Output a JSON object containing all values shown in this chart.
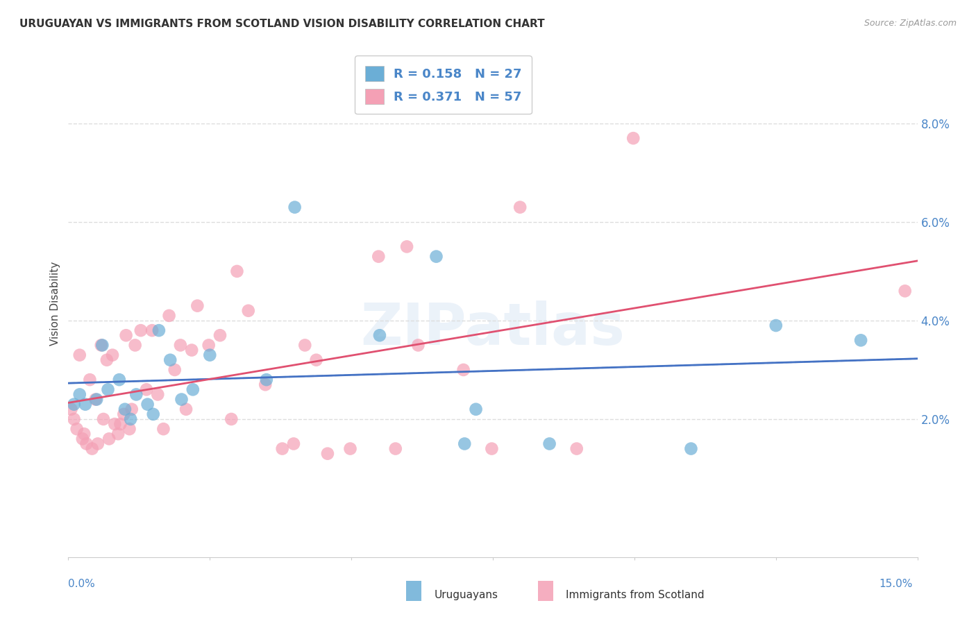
{
  "title": "URUGUAYAN VS IMMIGRANTS FROM SCOTLAND VISION DISABILITY CORRELATION CHART",
  "source": "Source: ZipAtlas.com",
  "ylabel": "Vision Disability",
  "xlim": [
    0.0,
    15.0
  ],
  "ylim": [
    -0.8,
    9.5
  ],
  "yticks": [
    2.0,
    4.0,
    6.0,
    8.0
  ],
  "ytick_labels": [
    "2.0%",
    "4.0%",
    "6.0%",
    "8.0%"
  ],
  "uruguayan_color": "#6baed6",
  "scotland_color": "#f4a0b5",
  "uruguayan_line_color": "#4472c4",
  "scotland_line_color": "#e05070",
  "dashed_line_color": "#c0cfe8",
  "uruguayan_R": 0.158,
  "uruguayan_N": 27,
  "scotland_R": 0.371,
  "scotland_N": 57,
  "uruguayans_x": [
    0.1,
    0.2,
    0.3,
    0.5,
    0.6,
    0.7,
    0.9,
    1.0,
    1.1,
    1.2,
    1.4,
    1.5,
    1.6,
    1.8,
    2.0,
    2.2,
    2.5,
    3.5,
    4.0,
    5.5,
    6.5,
    7.0,
    7.2,
    8.5,
    11.0,
    12.5,
    14.0
  ],
  "uruguayans_y": [
    2.3,
    2.5,
    2.3,
    2.4,
    3.5,
    2.6,
    2.8,
    2.2,
    2.0,
    2.5,
    2.3,
    2.1,
    3.8,
    3.2,
    2.4,
    2.6,
    3.3,
    2.8,
    6.3,
    3.7,
    5.3,
    1.5,
    2.2,
    1.5,
    1.4,
    3.9,
    3.6
  ],
  "scotland_x": [
    0.05,
    0.1,
    0.15,
    0.2,
    0.25,
    0.28,
    0.32,
    0.38,
    0.42,
    0.48,
    0.52,
    0.58,
    0.62,
    0.68,
    0.72,
    0.78,
    0.82,
    0.88,
    0.92,
    0.98,
    1.02,
    1.08,
    1.12,
    1.18,
    1.28,
    1.38,
    1.48,
    1.58,
    1.68,
    1.78,
    1.88,
    1.98,
    2.08,
    2.18,
    2.28,
    2.48,
    2.68,
    2.88,
    2.98,
    3.18,
    3.48,
    3.78,
    3.98,
    4.18,
    4.38,
    4.58,
    4.98,
    5.48,
    5.78,
    5.98,
    6.18,
    6.98,
    7.48,
    7.98,
    8.98,
    9.98,
    14.78
  ],
  "scotland_y": [
    2.2,
    2.0,
    1.8,
    3.3,
    1.6,
    1.7,
    1.5,
    2.8,
    1.4,
    2.4,
    1.5,
    3.5,
    2.0,
    3.2,
    1.6,
    3.3,
    1.9,
    1.7,
    1.9,
    2.1,
    3.7,
    1.8,
    2.2,
    3.5,
    3.8,
    2.6,
    3.8,
    2.5,
    1.8,
    4.1,
    3.0,
    3.5,
    2.2,
    3.4,
    4.3,
    3.5,
    3.7,
    2.0,
    5.0,
    4.2,
    2.7,
    1.4,
    1.5,
    3.5,
    3.2,
    1.3,
    1.4,
    5.3,
    1.4,
    5.5,
    3.5,
    3.0,
    1.4,
    6.3,
    1.4,
    7.7,
    4.6
  ],
  "background_color": "#ffffff",
  "grid_color": "#dddddd",
  "watermark_text": "ZIPatlas",
  "title_fontsize": 11,
  "axis_label_color": "#4a86c8",
  "legend_text_color": "#4a86c8",
  "bottom_legend_label_1": "Uruguayans",
  "bottom_legend_label_2": "Immigrants from Scotland"
}
